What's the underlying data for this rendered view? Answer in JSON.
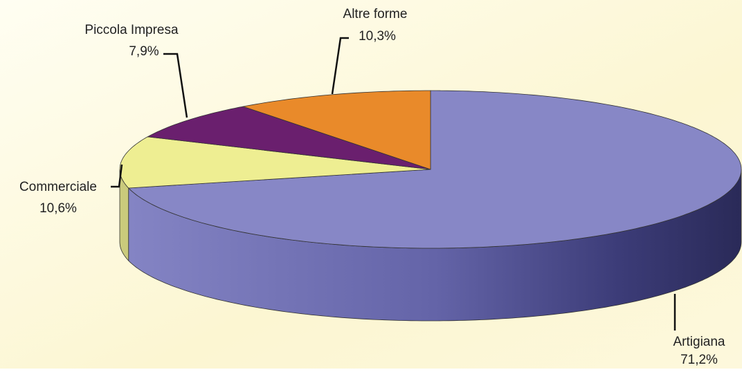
{
  "chart_data": {
    "type": "pie",
    "categories": [
      "Artigiana",
      "Commerciale",
      "Piccola Impresa",
      "Altre forme"
    ],
    "values": [
      71.2,
      10.6,
      7.9,
      10.3
    ],
    "value_labels": [
      "71,2%",
      "10,6%",
      "7,9%",
      "10,3%"
    ],
    "colors": [
      "#8787c6",
      "#eeee92",
      "#6a1f6e",
      "#e98a2a"
    ]
  }
}
